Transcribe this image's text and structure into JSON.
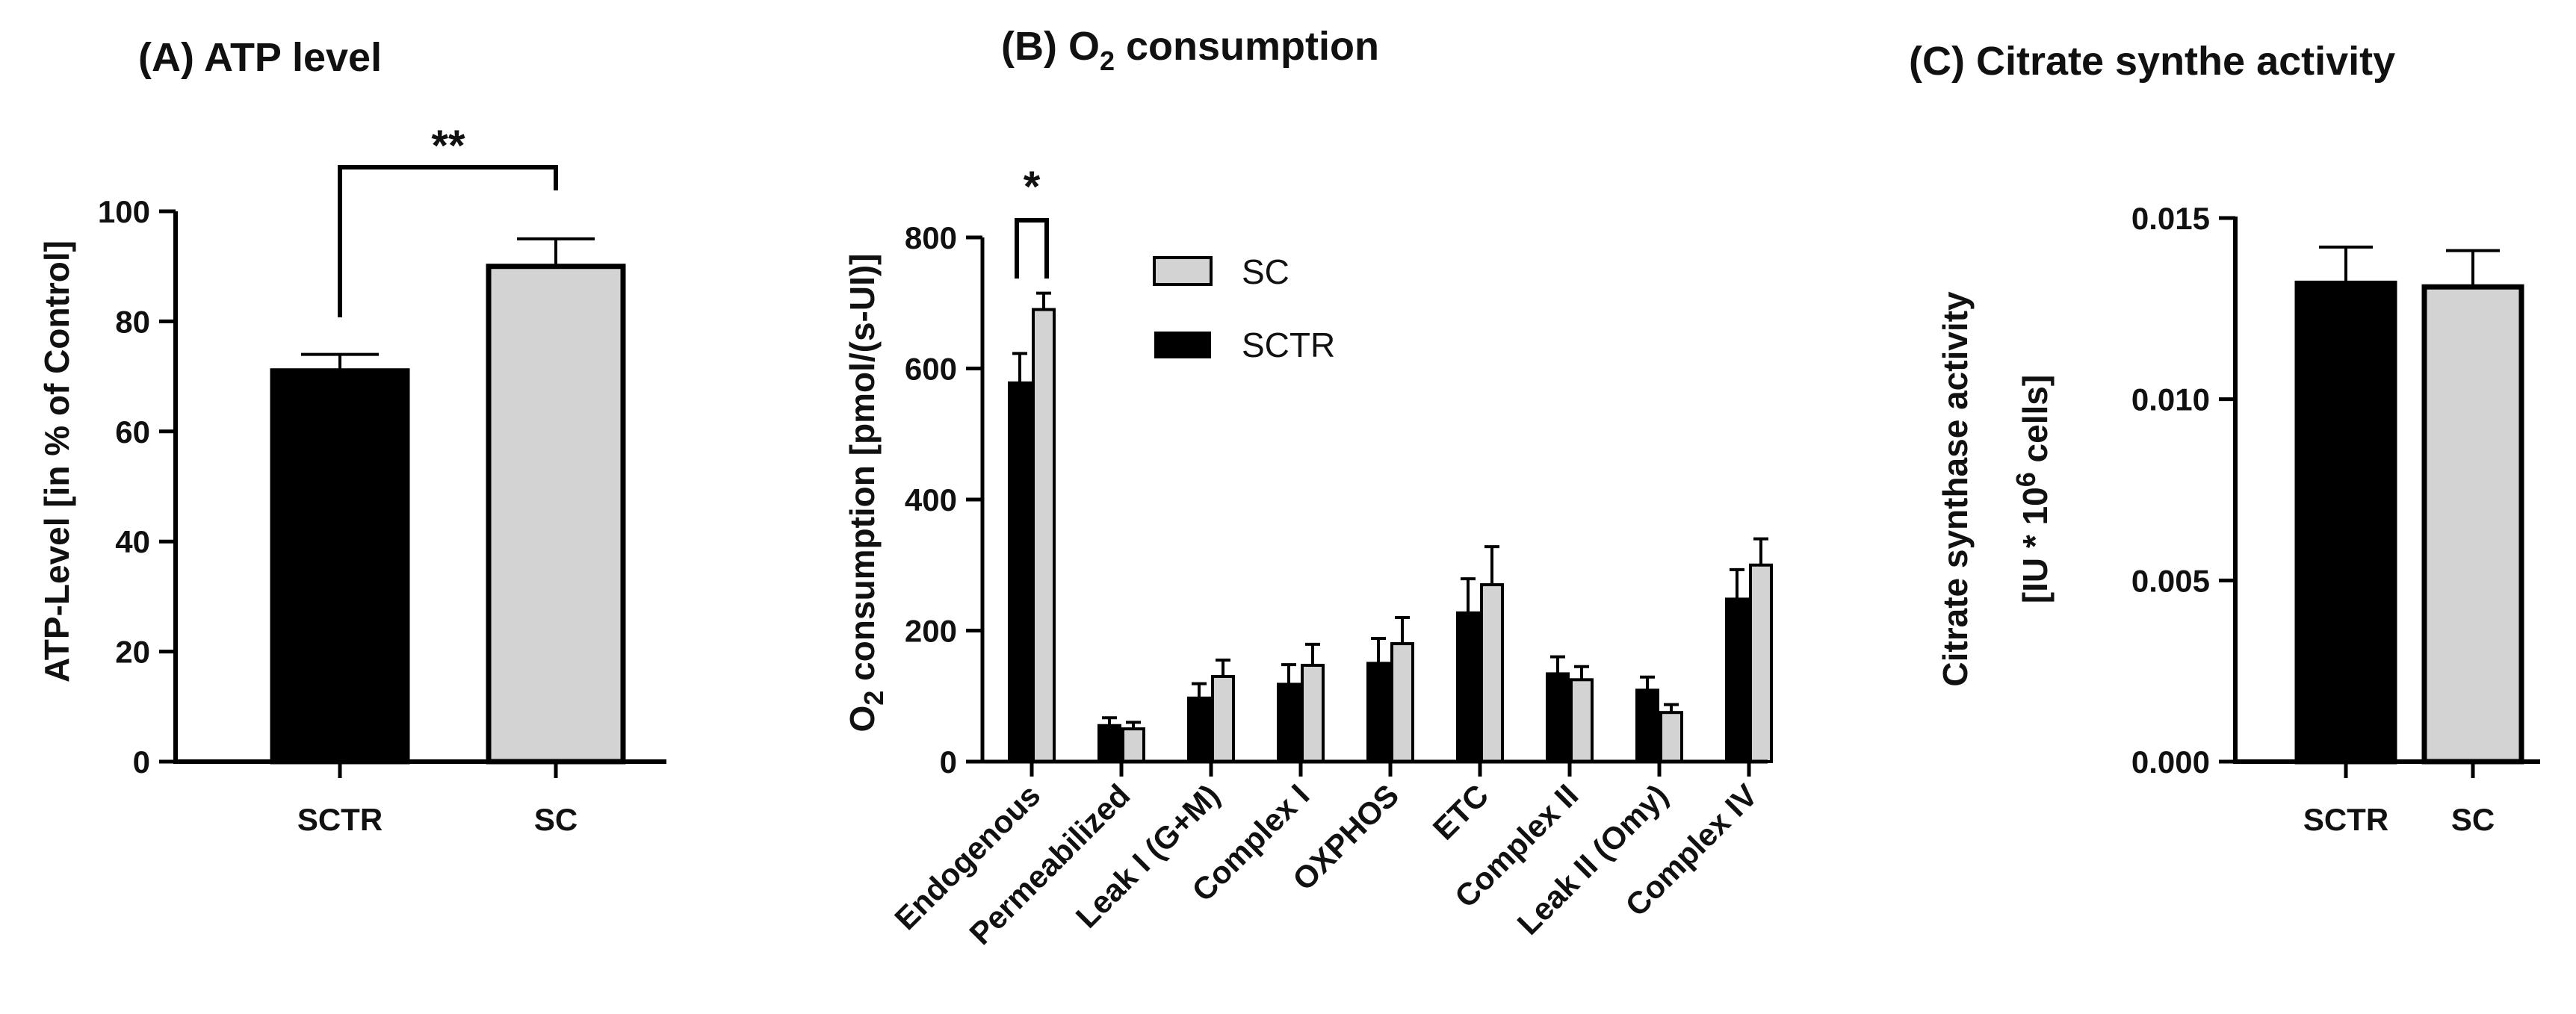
{
  "figure": {
    "colors": {
      "SCTR": "#000000",
      "SC": "#d3d3d3",
      "edge": "#000000"
    }
  },
  "chart_data": [
    {
      "id": "A",
      "type": "bar",
      "title": "(A) ATP level",
      "ylabel": "ATP-Level [in % of Control]",
      "xlabel": "",
      "categories": [
        "SCTR",
        "SC"
      ],
      "values": [
        71,
        90
      ],
      "errors": [
        3,
        5
      ],
      "ylim": [
        0,
        100
      ],
      "yticks": [
        0,
        20,
        40,
        60,
        80,
        100
      ],
      "ytick_labels": [
        "0",
        "20",
        "40",
        "60",
        "80",
        "100"
      ],
      "significance": {
        "between": [
          "SCTR",
          "SC"
        ],
        "label": "**"
      }
    },
    {
      "id": "B",
      "type": "bar",
      "title_parts": {
        "prefix": "(B) O",
        "sub": "2",
        "suffix": " consumption"
      },
      "ylabel_parts": {
        "prefix": "O",
        "sub": "2",
        "suffix": " consumption [pmol/(s-UI)]"
      },
      "xlabel": "",
      "categories": [
        "Endogenous",
        "Permeabilized",
        "Leak I (G+M)",
        "Complex I",
        "OXPHOS",
        "ETC",
        "Complex II",
        "Leak II (Omy)",
        "Complex IV"
      ],
      "series": [
        {
          "name": "SCTR",
          "values": [
            578,
            55,
            97,
            118,
            150,
            227,
            134,
            109,
            248
          ],
          "errors": [
            45,
            12,
            22,
            30,
            38,
            52,
            26,
            20,
            45
          ]
        },
        {
          "name": "SC",
          "values": [
            690,
            50,
            130,
            147,
            180,
            270,
            125,
            75,
            300
          ],
          "errors": [
            25,
            10,
            25,
            32,
            40,
            58,
            20,
            12,
            40
          ]
        }
      ],
      "legend": {
        "entries": [
          "SC",
          "SCTR"
        ],
        "placement": "top-center"
      },
      "ylim": [
        0,
        800
      ],
      "yticks": [
        0,
        200,
        400,
        600,
        800
      ],
      "ytick_labels": [
        "0",
        "200",
        "400",
        "600",
        "800"
      ],
      "significance": {
        "category": "Endogenous",
        "label": "*"
      }
    },
    {
      "id": "C",
      "type": "bar",
      "title": "(C) Citrate synthe activity",
      "ylabel_line1": "Citrate synthase activity",
      "ylabel_line2_parts": {
        "prefix": "[IU * 10",
        "sup": "6",
        "suffix": " cells]"
      },
      "xlabel": "",
      "categories": [
        "SCTR",
        "SC"
      ],
      "values": [
        0.0132,
        0.0131
      ],
      "errors": [
        0.001,
        0.001
      ],
      "ylim": [
        0,
        0.015
      ],
      "yticks": [
        0,
        0.005,
        0.01,
        0.015
      ],
      "ytick_labels": [
        "0.000",
        "0.005",
        "0.010",
        "0.015"
      ]
    }
  ]
}
